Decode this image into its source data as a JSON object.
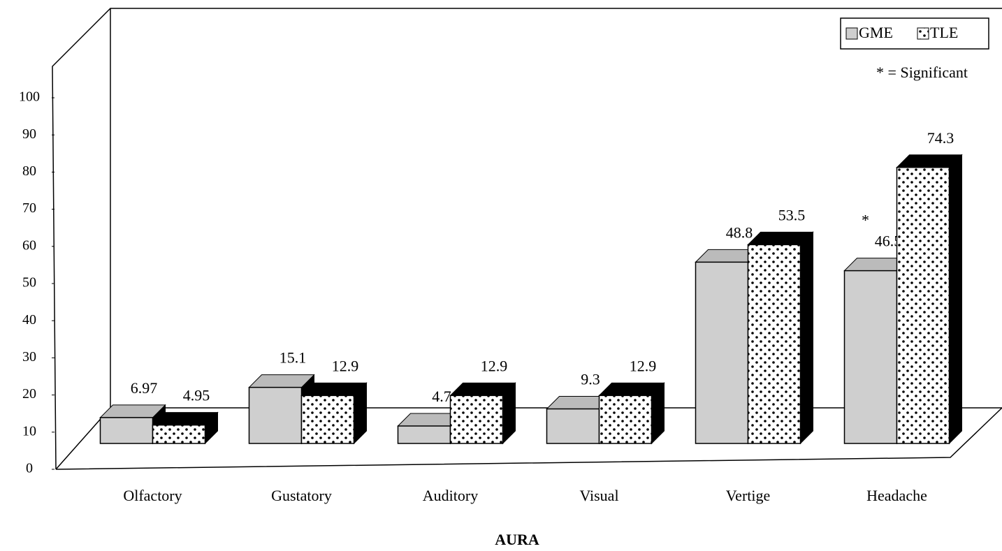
{
  "chart_data": {
    "type": "bar3d",
    "x_label": "AURA",
    "annotation": "* = Significant",
    "categories": [
      "Olfactory",
      "Gustatory",
      "Auditory",
      "Visual",
      "Vertige",
      "Headache"
    ],
    "series": [
      {
        "name": "GME",
        "color": "#cfcfcf",
        "values": [
          6.97,
          15.1,
          4.7,
          9.3,
          48.8,
          46.5
        ]
      },
      {
        "name": "TLE",
        "color": "#ffffff",
        "pattern": "dots",
        "values": [
          4.95,
          12.9,
          12.9,
          12.9,
          53.5,
          74.3
        ]
      }
    ],
    "significant": [
      {
        "category": 5,
        "series": 0,
        "marker": "*"
      }
    ],
    "ylim": [
      0,
      100
    ],
    "yticks": [
      0,
      10,
      20,
      30,
      40,
      50,
      60,
      70,
      80,
      90,
      100
    ],
    "legend": "top-right"
  }
}
